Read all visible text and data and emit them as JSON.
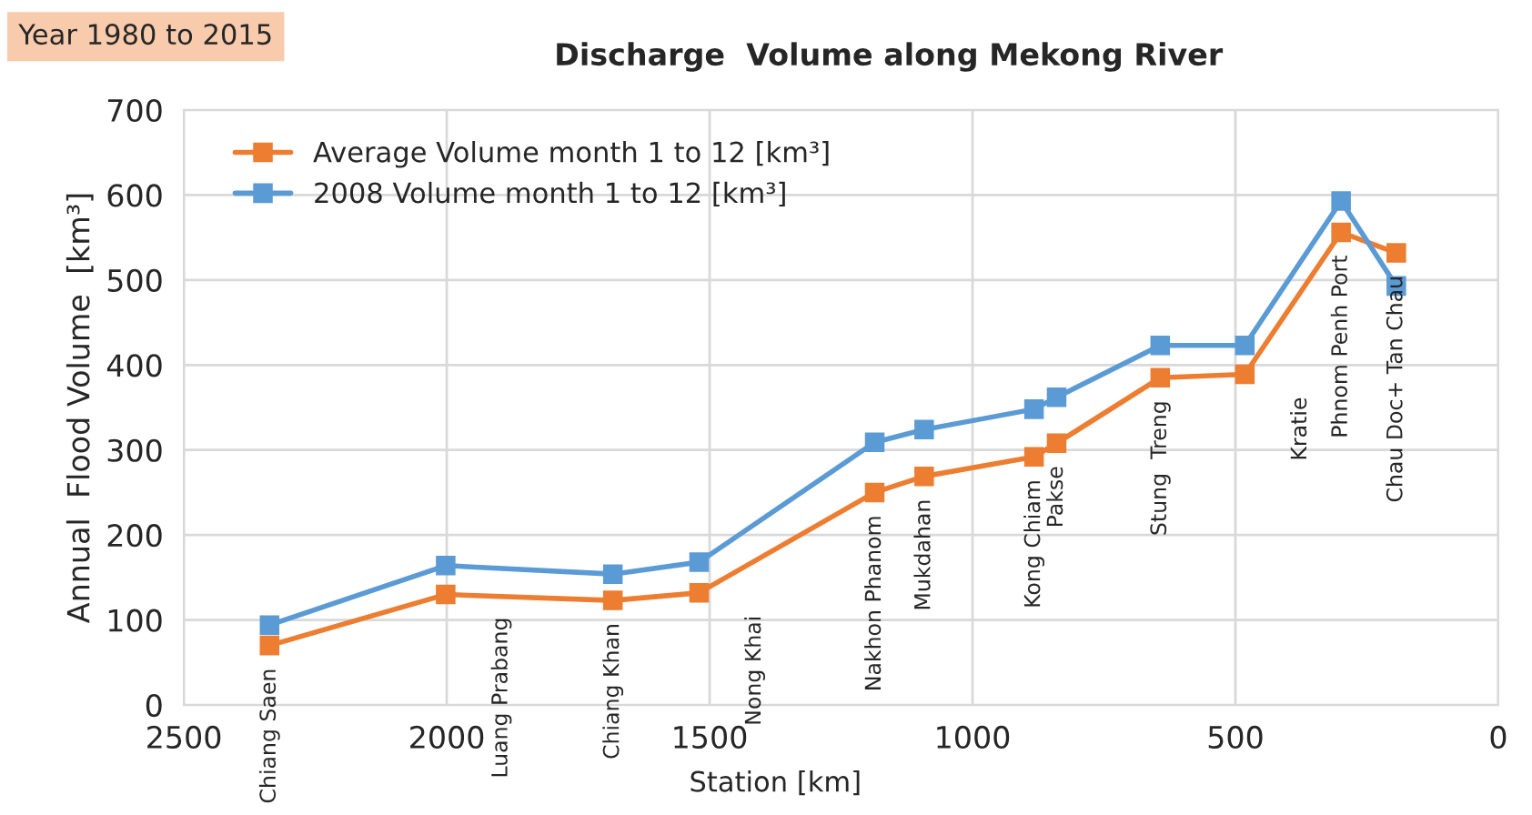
{
  "chart_data": {
    "type": "line",
    "title": "Discharge  Volume along Mekong River",
    "subtitle": "Year 1980 to 2015",
    "xlabel": "Station [km]",
    "ylabel": "Annual  Flood Volume  [km³]",
    "x": [
      2337,
      2002,
      1684,
      1520,
      1186,
      1092,
      883,
      840,
      643,
      482,
      299,
      194
    ],
    "series": [
      {
        "name": "Average Volume month 1 to 12 [km³]",
        "color": "#ed7d31",
        "values": [
          70,
          130,
          123,
          132,
          250,
          269,
          292,
          308,
          385,
          389,
          556,
          532
        ]
      },
      {
        "name": "2008 Volume month 1 to 12 [km³]",
        "color": "#5b9bd5",
        "values": [
          94,
          164,
          154,
          168,
          309,
          324,
          348,
          362,
          423,
          423,
          593,
          493
        ]
      }
    ],
    "annotations": [
      {
        "text": "Chiang Saen",
        "x": 2337,
        "y": 70
      },
      {
        "text": "Luang Prabang",
        "x": 2002,
        "y": 130
      },
      {
        "text": "Chiang Khan",
        "x": 1684,
        "y": 123
      },
      {
        "text": "Nong Khai",
        "x": 1520,
        "y": 132
      },
      {
        "text": "Nakhon Phanom",
        "x": 1186,
        "y": 250
      },
      {
        "text": "Mukdahan",
        "x": 1092,
        "y": 269
      },
      {
        "text": "Kong Chiam",
        "x": 883,
        "y": 292
      },
      {
        "text": "Pakse",
        "x": 840,
        "y": 308
      },
      {
        "text": "Stung  Treng",
        "x": 643,
        "y": 385
      },
      {
        "text": "Kratie",
        "x": 482,
        "y": 389
      },
      {
        "text": "Phnom Penh Port",
        "x": 299,
        "y": 556
      },
      {
        "text": "Chau Doc+ Tan Chau",
        "x": 194,
        "y": 532
      }
    ],
    "xlim": [
      2500,
      0
    ],
    "xticks": [
      2500,
      2000,
      1500,
      1000,
      500,
      0
    ],
    "ylim": [
      0,
      700
    ],
    "yticks": [
      0,
      100,
      200,
      300,
      400,
      500,
      600,
      700
    ],
    "grid": true,
    "legend": "top left",
    "marker": "square",
    "line_style": "solid"
  }
}
